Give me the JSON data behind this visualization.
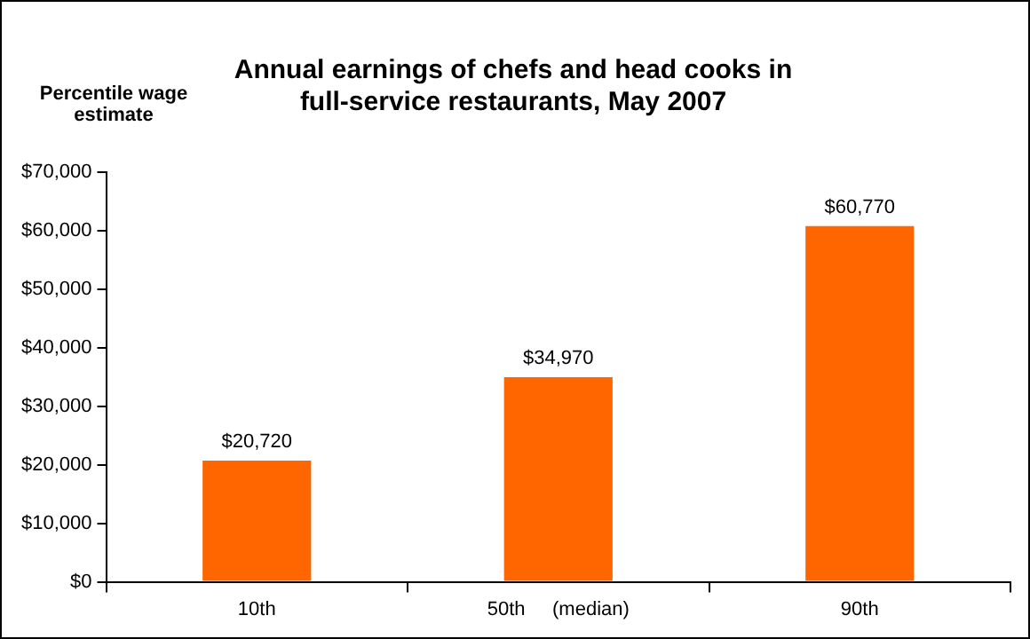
{
  "chart_data": {
    "type": "bar",
    "title": [
      "Annual earnings of chefs and head cooks in",
      "full-service restaurants, May 2007"
    ],
    "ylabel": "Percentile wage estimate",
    "categories": [
      "10th",
      "50th     (median)",
      "90th"
    ],
    "values": [
      20720,
      34970,
      60770
    ],
    "value_labels": [
      "$20,720",
      "$34,970",
      "$60,770"
    ],
    "color": "#ff6600",
    "ylim": [
      0,
      70000
    ],
    "yticks": [
      {
        "value": 0,
        "label": "$0"
      },
      {
        "value": 10000,
        "label": "$10,000"
      },
      {
        "value": 20000,
        "label": "$20,000"
      },
      {
        "value": 30000,
        "label": "$30,000"
      },
      {
        "value": 40000,
        "label": "$40,000"
      },
      {
        "value": 50000,
        "label": "$50,000"
      },
      {
        "value": 60000,
        "label": "$60,000"
      },
      {
        "value": 70000,
        "label": "$70,000"
      }
    ],
    "grid": false,
    "legend": false
  }
}
